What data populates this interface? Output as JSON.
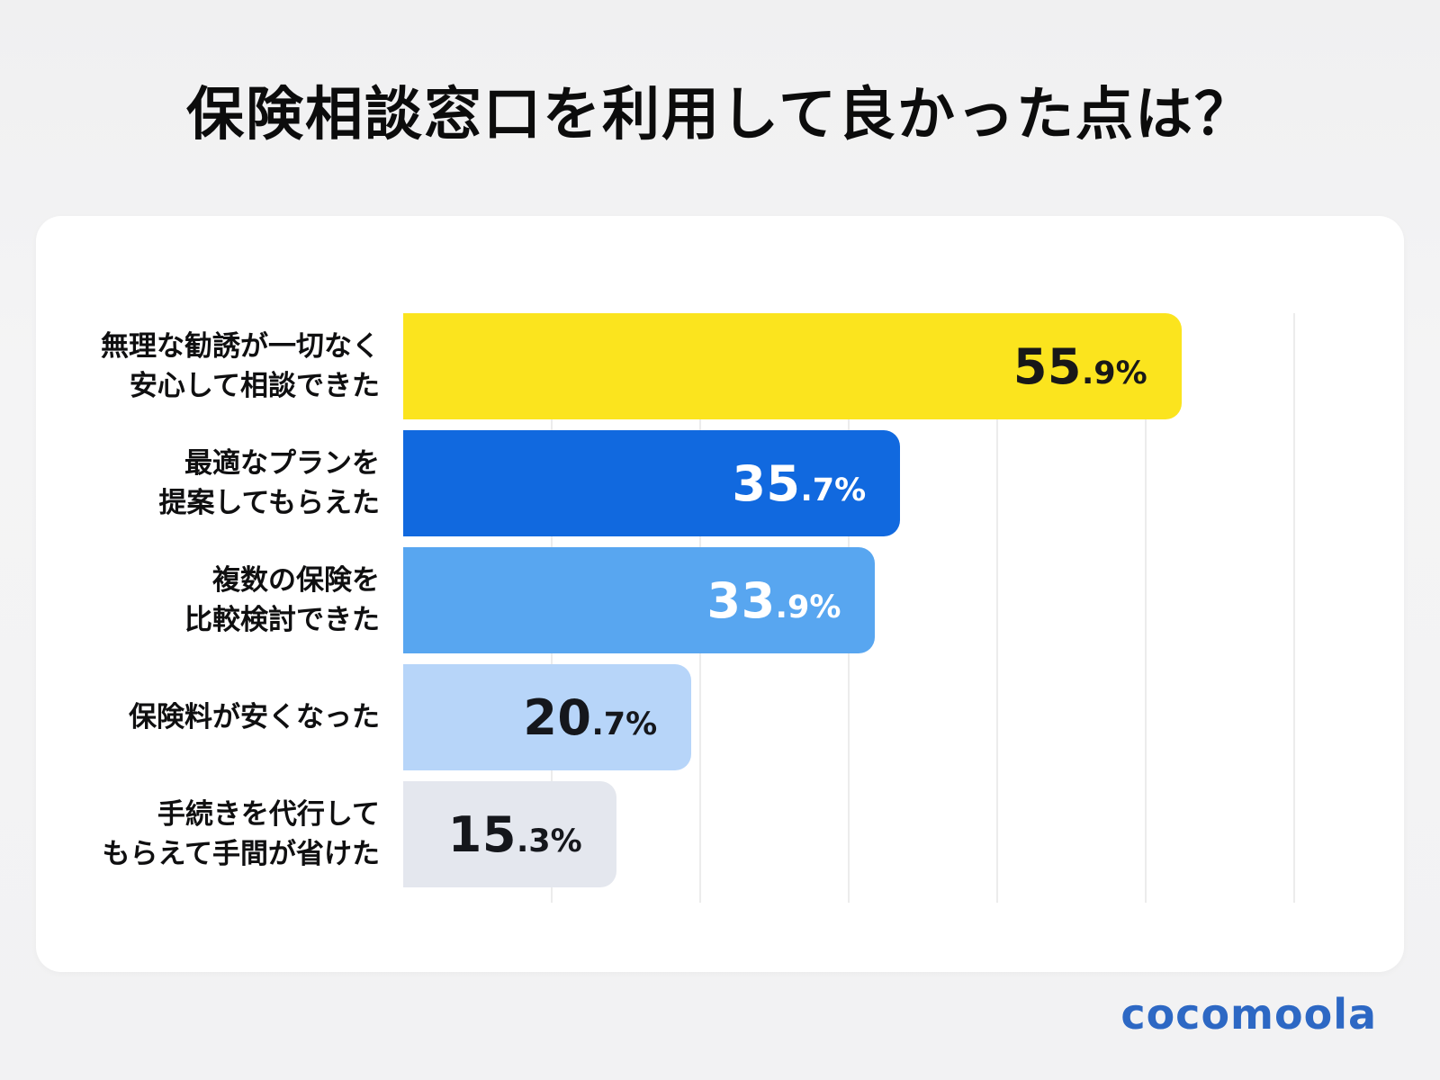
{
  "page": {
    "title": "保険相談窓口を利用して良かった点は？",
    "brand": "cocomoola",
    "brand_color": "#2d68c4"
  },
  "chart_data": {
    "type": "bar",
    "orientation": "horizontal",
    "title": "保険相談窓口を利用して良かった点は？",
    "categories": [
      "無理な勧誘が一切なく\n安心して相談できた",
      "最適なプランを\n提案してもらえた",
      "複数の保険を\n比較検討できた",
      "保険料が安くなった",
      "手続きを代行して\nもらえて手間が省けた"
    ],
    "values": [
      55.9,
      35.7,
      33.9,
      20.7,
      15.3
    ],
    "unit": "%",
    "xlim": [
      0,
      64
    ],
    "grid": true,
    "gridline_count": 6,
    "legend": "none",
    "bar_colors": [
      "#fbe41e",
      "#1169df",
      "#58a6f0",
      "#b7d5f9",
      "#e4e7ee"
    ],
    "value_label_colors": [
      "#181818",
      "#ffffff",
      "#ffffff",
      "#15171c",
      "#15171c"
    ],
    "gridline_color": "#ececec",
    "card_background": "#ffffff"
  }
}
